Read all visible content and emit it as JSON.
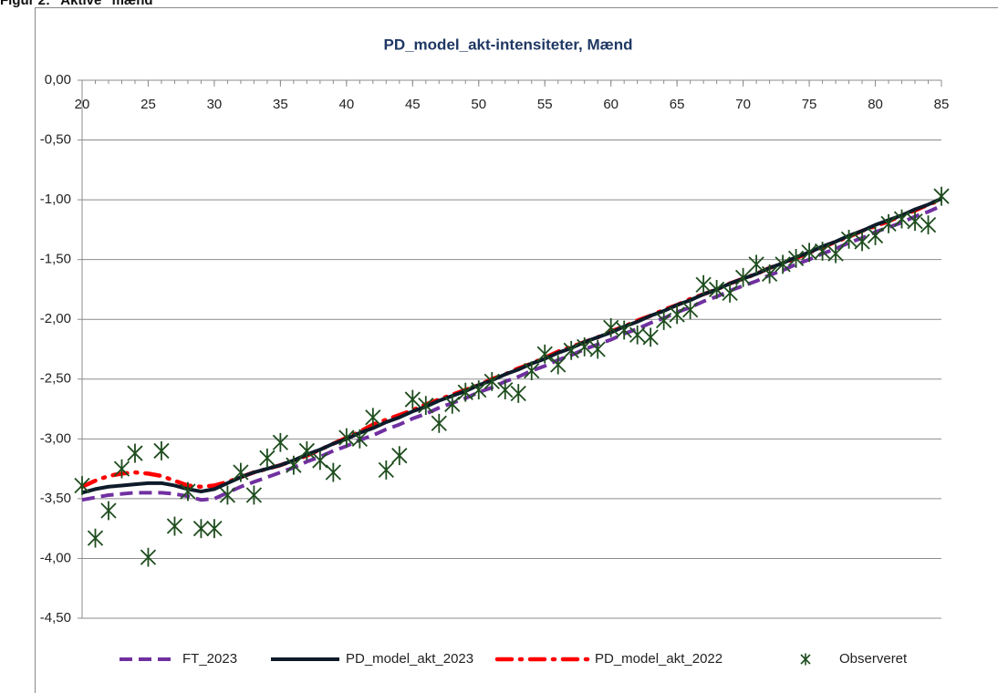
{
  "figure_title": "Figur 2: \"Aktive\" mænd",
  "chart_data": {
    "type": "line",
    "title": "PD_model_akt-intensiteter, Mænd",
    "x": [
      20,
      21,
      22,
      23,
      24,
      25,
      26,
      27,
      28,
      29,
      30,
      31,
      32,
      33,
      34,
      35,
      36,
      37,
      38,
      39,
      40,
      41,
      42,
      43,
      44,
      45,
      46,
      47,
      48,
      49,
      50,
      51,
      52,
      53,
      54,
      55,
      56,
      57,
      58,
      59,
      60,
      61,
      62,
      63,
      64,
      65,
      66,
      67,
      68,
      69,
      70,
      71,
      72,
      73,
      74,
      75,
      76,
      77,
      78,
      79,
      80,
      81,
      82,
      83,
      84,
      85
    ],
    "xlim": [
      20,
      85
    ],
    "xticks": [
      20,
      25,
      30,
      35,
      40,
      45,
      50,
      55,
      60,
      65,
      70,
      75,
      80,
      85
    ],
    "ylim": [
      -4.5,
      0
    ],
    "yticks": [
      {
        "value": 0,
        "label": "0,00"
      },
      {
        "value": -0.5,
        "label": "-0,50"
      },
      {
        "value": -1,
        "label": "-1,00"
      },
      {
        "value": -1.5,
        "label": "-1,50"
      },
      {
        "value": -2,
        "label": "-2,00"
      },
      {
        "value": -2.5,
        "label": "-2,50"
      },
      {
        "value": -3,
        "label": "-3,00"
      },
      {
        "value": -3.5,
        "label": "-3,50"
      },
      {
        "value": -4,
        "label": "-4,00"
      },
      {
        "value": -4.5,
        "label": "-4,50"
      }
    ],
    "grid": true,
    "legend": "bottom",
    "series": [
      {
        "name": "FT_2023",
        "color": "#7030a0",
        "style": "dashed",
        "values": [
          -3.51,
          -3.49,
          -3.47,
          -3.46,
          -3.45,
          -3.45,
          -3.45,
          -3.46,
          -3.48,
          -3.51,
          -3.5,
          -3.45,
          -3.4,
          -3.36,
          -3.32,
          -3.28,
          -3.24,
          -3.19,
          -3.15,
          -3.1,
          -3.06,
          -3.01,
          -2.97,
          -2.92,
          -2.88,
          -2.83,
          -2.79,
          -2.74,
          -2.7,
          -2.66,
          -2.61,
          -2.57,
          -2.52,
          -2.48,
          -2.43,
          -2.39,
          -2.34,
          -2.3,
          -2.25,
          -2.21,
          -2.17,
          -2.12,
          -2.08,
          -2.03,
          -1.99,
          -1.94,
          -1.9,
          -1.85,
          -1.81,
          -1.76,
          -1.72,
          -1.68,
          -1.63,
          -1.59,
          -1.54,
          -1.5,
          -1.45,
          -1.41,
          -1.36,
          -1.32,
          -1.27,
          -1.23,
          -1.19,
          -1.14,
          -1.1,
          -1.05
        ]
      },
      {
        "name": "PD_model_akt_2023",
        "color": "#0d1b2a",
        "style": "solid",
        "values": [
          -3.45,
          -3.42,
          -3.4,
          -3.39,
          -3.38,
          -3.37,
          -3.37,
          -3.39,
          -3.42,
          -3.44,
          -3.42,
          -3.37,
          -3.32,
          -3.28,
          -3.25,
          -3.22,
          -3.18,
          -3.13,
          -3.09,
          -3.04,
          -3.0,
          -2.95,
          -2.91,
          -2.86,
          -2.82,
          -2.77,
          -2.73,
          -2.68,
          -2.64,
          -2.6,
          -2.55,
          -2.51,
          -2.46,
          -2.42,
          -2.37,
          -2.33,
          -2.28,
          -2.24,
          -2.19,
          -2.15,
          -2.11,
          -2.06,
          -2.02,
          -1.97,
          -1.93,
          -1.88,
          -1.84,
          -1.79,
          -1.75,
          -1.7,
          -1.66,
          -1.62,
          -1.57,
          -1.53,
          -1.48,
          -1.44,
          -1.39,
          -1.35,
          -1.3,
          -1.26,
          -1.21,
          -1.17,
          -1.13,
          -1.08,
          -1.04,
          -0.99
        ]
      },
      {
        "name": "PD_model_akt_2022",
        "color": "#ff0000",
        "style": "dashdot",
        "values": [
          -3.4,
          -3.35,
          -3.31,
          -3.29,
          -3.28,
          -3.29,
          -3.31,
          -3.35,
          -3.39,
          -3.4,
          -3.39,
          -3.36,
          -3.32,
          -3.28,
          -3.25,
          -3.22,
          -3.18,
          -3.14,
          -3.09,
          -3.04,
          -2.99,
          -2.94,
          -2.88,
          -2.84,
          -2.8,
          -2.76,
          -2.71,
          -2.67,
          -2.63,
          -2.59,
          -2.55,
          -2.5,
          -2.46,
          -2.41,
          -2.37,
          -2.32,
          -2.27,
          -2.23,
          -2.19,
          -2.15,
          -2.1,
          -2.06,
          -2.01,
          -1.97,
          -1.92,
          -1.88,
          -1.83,
          -1.79,
          -1.75,
          -1.7,
          -1.66,
          -1.62,
          -1.57,
          -1.53,
          -1.49,
          -1.44,
          -1.4,
          -1.35,
          -1.31,
          -1.26,
          -1.22,
          -1.18,
          -1.13,
          -1.09,
          -1.04,
          -1.0
        ]
      },
      {
        "name": "Observeret",
        "color": "#1e4d1e",
        "style": "markers",
        "values": [
          -3.39,
          -3.83,
          -3.6,
          -3.25,
          -3.12,
          -3.99,
          -3.1,
          -3.73,
          -3.44,
          -3.75,
          -3.75,
          -3.47,
          -3.28,
          -3.47,
          -3.16,
          -3.03,
          -3.22,
          -3.1,
          -3.18,
          -3.28,
          -2.99,
          -3.0,
          -2.82,
          -3.26,
          -3.14,
          -2.67,
          -2.72,
          -2.87,
          -2.71,
          -2.61,
          -2.59,
          -2.52,
          -2.59,
          -2.62,
          -2.43,
          -2.29,
          -2.38,
          -2.26,
          -2.23,
          -2.25,
          -2.07,
          -2.09,
          -2.13,
          -2.15,
          -2.01,
          -1.96,
          -1.92,
          -1.71,
          -1.75,
          -1.78,
          -1.65,
          -1.54,
          -1.62,
          -1.54,
          -1.49,
          -1.44,
          -1.43,
          -1.45,
          -1.33,
          -1.35,
          -1.3,
          -1.2,
          -1.16,
          -1.18,
          -1.21,
          -0.97
        ]
      }
    ]
  }
}
